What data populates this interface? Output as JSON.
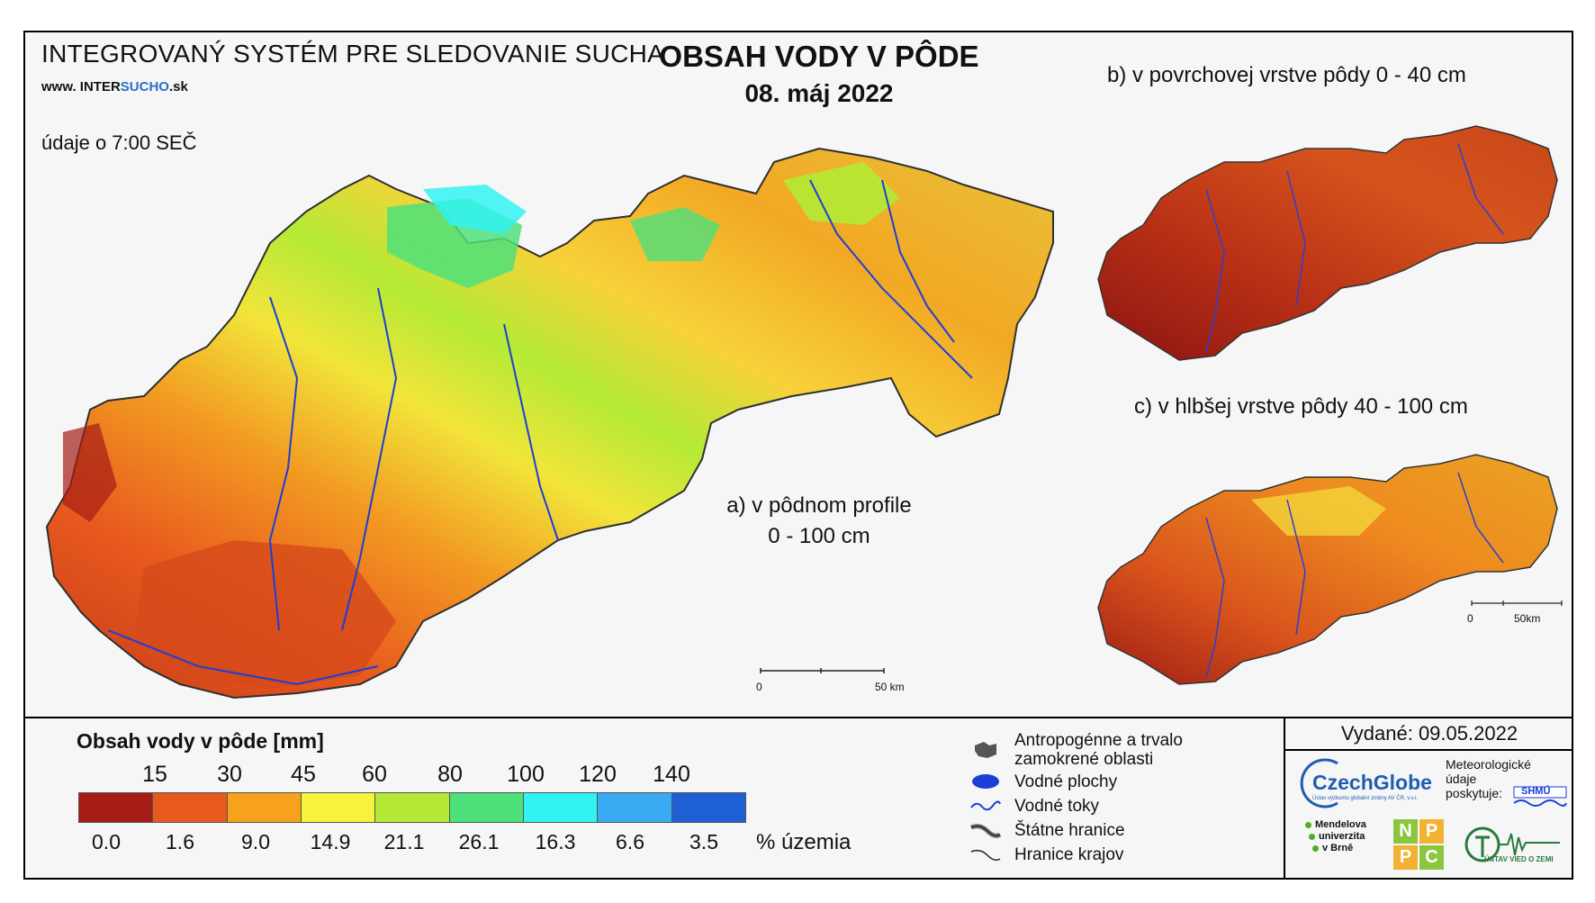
{
  "header": {
    "system_title": "INTEGROVANÝ SYSTÉM PRE SLEDOVANIE SUCHA",
    "url_prefix": "www. INTER",
    "url_highlight": "SUCHO",
    "url_suffix": ".sk",
    "time_note": "údaje o 7:00 SEČ",
    "main_title": "OBSAH VODY V PÔDE",
    "date": "08. máj 2022"
  },
  "maps": {
    "a_label_line1": "a) v pôdnom profile",
    "a_label_line2": "0 - 100 cm",
    "b_label": "b) v povrchovej vrstve pôdy 0 - 40 cm",
    "c_label": "c) v hlbšej vrstve pôdy 40 - 100 cm",
    "scale_zero": "0",
    "scale_end": "50 km",
    "scale_end_small": "50km"
  },
  "legend": {
    "title": "Obsah vody v pôde  [mm]",
    "thresholds": [
      "15",
      "30",
      "45",
      "60",
      "80",
      "100",
      "120",
      "140"
    ],
    "colors": [
      "#a51c16",
      "#e8591e",
      "#f7a21d",
      "#f7f23c",
      "#b4ea35",
      "#4ee07a",
      "#31f3f2",
      "#3aabf2",
      "#1e5fd6"
    ],
    "percents": [
      "0.0",
      "1.6",
      "9.0",
      "14.9",
      "21.1",
      "26.1",
      "16.3",
      "6.6",
      "3.5"
    ],
    "percent_unit": "% územia"
  },
  "symbols": {
    "anthropogenic_line1": "Antropogénne a trvalo",
    "anthropogenic_line2": "zamokrené oblasti",
    "water_bodies": "Vodné plochy",
    "water_streams": "Vodné toky",
    "state_border": "Štátne hranice",
    "region_border": "Hranice krajov"
  },
  "footer": {
    "issued": "Vydané: 09.05.2022",
    "czechglobe": "CzechGlobe",
    "czechglobe_sub": "Ústav výzkumu globální změny AV ČR, v.v.i.",
    "met_line1": "Meteorologické",
    "met_line2": "údaje",
    "met_line3": "poskytuje:",
    "shmu": "SHMÚ",
    "mendel_line1": "Mendelova",
    "mendel_line2": "univerzita",
    "mendel_line3": "v Brně",
    "nppc": [
      "N",
      "P",
      "P",
      "C"
    ],
    "uvz": "ÚSTAV VIED O ZEMI"
  }
}
